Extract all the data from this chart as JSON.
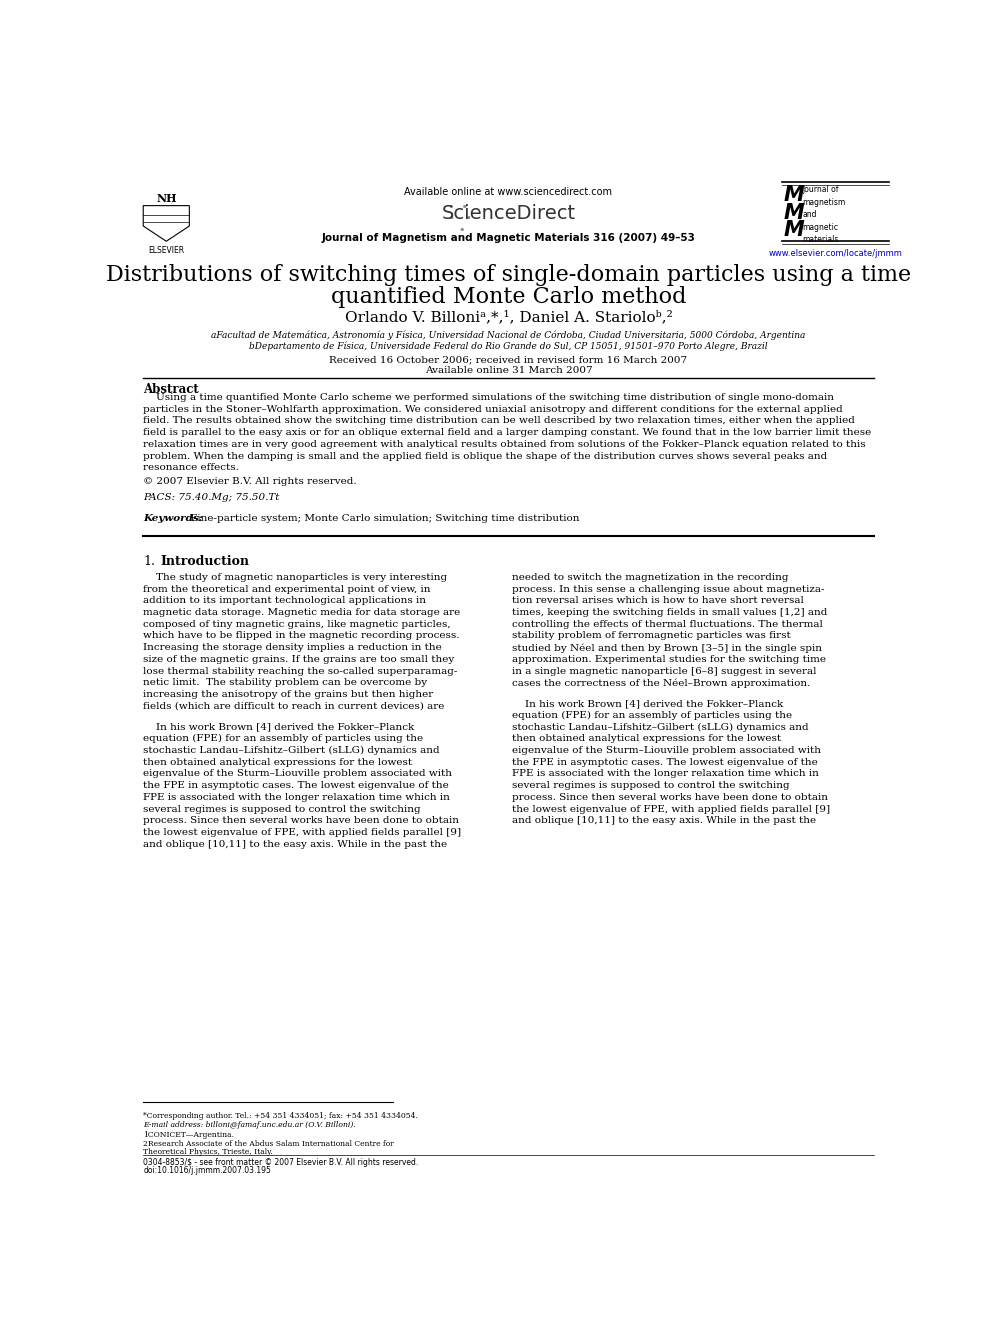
{
  "title_line1": "Distributions of switching times of single-domain particles using a time",
  "title_line2": "quantified Monte Carlo method",
  "affil_a": "aFacultad de Matemática, Astronomía y Física, Universidad Nacional de Córdoba, Ciudad Universitaria, 5000 Córdoba, Argentina",
  "affil_b": "bDepartamento de Física, Universidade Federal do Rio Grande do Sul, CP 15051, 91501–970 Porto Alegre, Brazil",
  "received": "Received 16 October 2006; received in revised form 16 March 2007",
  "available": "Available online 31 March 2007",
  "header_center": "Available online at www.sciencedirect.com",
  "journal_line": "Journal of Magnetism and Magnetic Materials 316 (2007) 49–53",
  "url": "www.elsevier.com/locate/jmmm",
  "abstract_title": "Abstract",
  "copyright": "© 2007 Elsevier B.V. All rights reserved.",
  "pacs": "PACS: 75.40.Mg; 75.50.Tt",
  "footnote1": "*Corresponding author. Tel.: +54 351 4334051; fax: +54 351 4334054.",
  "footnote1b": "E-mail address: billoni@famaf.unc.edu.ar (O.V. Billoni).",
  "footnote2": "1CONICET—Argentina.",
  "footnote3a": "2Research Associate of the Abdus Salam International Centre for",
  "footnote3b": "Theoretical Physics, Trieste, Italy.",
  "footer_left": "0304-8853/$ - see front matter © 2007 Elsevier B.V. All rights reserved.",
  "footer_doi": "doi:10.1016/j.jmmm.2007.03.195",
  "bg_color": "#ffffff",
  "text_color": "#000000",
  "link_color": "#0000cc",
  "abs_lines": [
    "    Using a time quantified Monte Carlo scheme we performed simulations of the switching time distribution of single mono-domain",
    "particles in the Stoner–Wohlfarth approximation. We considered uniaxial anisotropy and different conditions for the external applied",
    "field. The results obtained show the switching time distribution can be well described by two relaxation times, either when the applied",
    "field is parallel to the easy axis or for an oblique external field and a larger damping constant. We found that in the low barrier limit these",
    "relaxation times are in very good agreement with analytical results obtained from solutions of the Fokker–Planck equation related to this",
    "problem. When the damping is small and the applied field is oblique the shape of the distribution curves shows several peaks and",
    "resonance effects."
  ],
  "col1_lines": [
    "    The study of magnetic nanoparticles is very interesting",
    "from the theoretical and experimental point of view, in",
    "addition to its important technological applications in",
    "magnetic data storage. Magnetic media for data storage are",
    "composed of tiny magnetic grains, like magnetic particles,",
    "which have to be flipped in the magnetic recording process.",
    "Increasing the storage density implies a reduction in the",
    "size of the magnetic grains. If the grains are too small they",
    "lose thermal stability reaching the so-called superparamag-",
    "netic limit.  The stability problem can be overcome by",
    "increasing the anisotropy of the grains but then higher",
    "fields (which are difficult to reach in current devices) are"
  ],
  "col2_lines": [
    "needed to switch the magnetization in the recording",
    "process. In this sense a challenging issue about magnetiza-",
    "tion reversal arises which is how to have short reversal",
    "times, keeping the switching fields in small values [1,2] and",
    "controlling the effects of thermal fluctuations. The thermal",
    "stability problem of ferromagnetic particles was first",
    "studied by Néel and then by Brown [3–5] in the single spin",
    "approximation. Experimental studies for the switching time",
    "in a single magnetic nanoparticle [6–8] suggest in several",
    "cases the correctness of the Néel–Brown approximation."
  ],
  "p2_col1": [
    "    In his work Brown [4] derived the Fokker–Planck",
    "equation (FPE) for an assembly of particles using the",
    "stochastic Landau–Lifshitz–Gilbert (sLLG) dynamics and",
    "then obtained analytical expressions for the lowest",
    "eigenvalue of the Sturm–Liouville problem associated with",
    "the FPE in asymptotic cases. The lowest eigenvalue of the",
    "FPE is associated with the longer relaxation time which in",
    "several regimes is supposed to control the switching",
    "process. Since then several works have been done to obtain",
    "the lowest eigenvalue of FPE, with applied fields parallel [9]",
    "and oblique [10,11] to the easy axis. While in the past the"
  ],
  "p2_col2": [
    "    In his work Brown [4] derived the Fokker–Planck",
    "equation (FPE) for an assembly of particles using the",
    "stochastic Landau–Lifshitz–Gilbert (sLLG) dynamics and",
    "then obtained analytical expressions for the lowest",
    "eigenvalue of the Sturm–Liouville problem associated with",
    "the FPE in asymptotic cases. The lowest eigenvalue of the",
    "FPE is associated with the longer relaxation time which in",
    "several regimes is supposed to control the switching",
    "process. Since then several works have been done to obtain",
    "the lowest eigenvalue of FPE, with applied fields parallel [9]",
    "and oblique [10,11] to the easy axis. While in the past the"
  ]
}
